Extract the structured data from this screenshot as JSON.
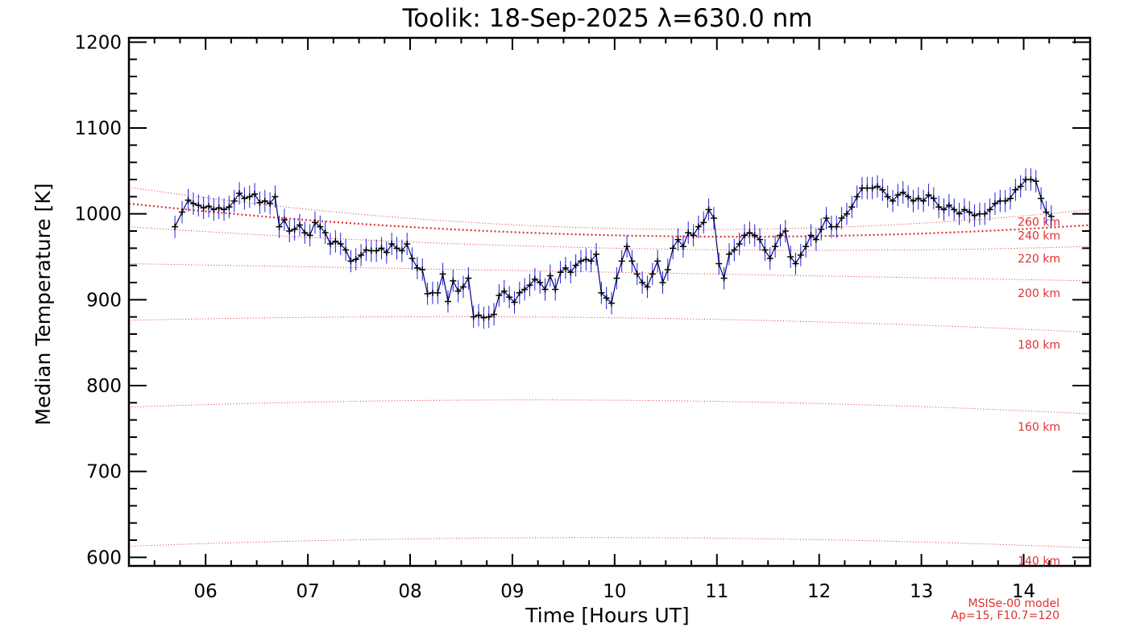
{
  "chart_data": {
    "type": "line",
    "title": "Toolik: 18-Sep-2025 λ=630.0 nm",
    "xlabel": "Time [Hours UT]",
    "ylabel": "Median Temperature [K]",
    "xlim": [
      5.25,
      14.65
    ],
    "ylim": [
      590,
      1205
    ],
    "x_ticks": [
      6,
      7,
      8,
      9,
      10,
      11,
      12,
      13,
      14
    ],
    "x_tick_labels": [
      "06",
      "07",
      "08",
      "09",
      "10",
      "11",
      "12",
      "13",
      "14"
    ],
    "y_ticks": [
      600,
      700,
      800,
      900,
      1000,
      1100,
      1200
    ],
    "y_tick_labels": [
      "600",
      "700",
      "800",
      "900",
      "1000",
      "1100",
      "1200"
    ],
    "series": [
      {
        "color": "#000080",
        "error_color": "#2020e0",
        "error": 13,
        "points": [
          [
            5.7,
            985
          ],
          [
            5.77,
            1002
          ],
          [
            5.83,
            1016
          ],
          [
            5.88,
            1012
          ],
          [
            5.93,
            1010
          ],
          [
            5.98,
            1007
          ],
          [
            6.03,
            1009
          ],
          [
            6.08,
            1005
          ],
          [
            6.13,
            1007
          ],
          [
            6.18,
            1005
          ],
          [
            6.23,
            1008
          ],
          [
            6.28,
            1015
          ],
          [
            6.33,
            1024
          ],
          [
            6.38,
            1018
          ],
          [
            6.43,
            1020
          ],
          [
            6.48,
            1023
          ],
          [
            6.53,
            1013
          ],
          [
            6.58,
            1015
          ],
          [
            6.63,
            1012
          ],
          [
            6.68,
            1020
          ],
          [
            6.72,
            985
          ],
          [
            6.77,
            993
          ],
          [
            6.82,
            980
          ],
          [
            6.87,
            982
          ],
          [
            6.92,
            987
          ],
          [
            6.97,
            978
          ],
          [
            7.02,
            975
          ],
          [
            7.07,
            990
          ],
          [
            7.12,
            985
          ],
          [
            7.17,
            978
          ],
          [
            7.22,
            965
          ],
          [
            7.27,
            968
          ],
          [
            7.32,
            965
          ],
          [
            7.37,
            958
          ],
          [
            7.42,
            945
          ],
          [
            7.47,
            947
          ],
          [
            7.52,
            952
          ],
          [
            7.57,
            958
          ],
          [
            7.62,
            957
          ],
          [
            7.67,
            957
          ],
          [
            7.72,
            960
          ],
          [
            7.77,
            955
          ],
          [
            7.82,
            965
          ],
          [
            7.87,
            960
          ],
          [
            7.92,
            957
          ],
          [
            7.97,
            965
          ],
          [
            8.02,
            948
          ],
          [
            8.07,
            937
          ],
          [
            8.12,
            935
          ],
          [
            8.17,
            907
          ],
          [
            8.22,
            908
          ],
          [
            8.27,
            908
          ],
          [
            8.32,
            930
          ],
          [
            8.37,
            898
          ],
          [
            8.42,
            922
          ],
          [
            8.47,
            910
          ],
          [
            8.52,
            915
          ],
          [
            8.57,
            925
          ],
          [
            8.62,
            880
          ],
          [
            8.67,
            882
          ],
          [
            8.72,
            879
          ],
          [
            8.77,
            880
          ],
          [
            8.82,
            883
          ],
          [
            8.87,
            905
          ],
          [
            8.92,
            910
          ],
          [
            8.97,
            903
          ],
          [
            9.02,
            897
          ],
          [
            9.07,
            908
          ],
          [
            9.12,
            912
          ],
          [
            9.17,
            917
          ],
          [
            9.22,
            924
          ],
          [
            9.27,
            920
          ],
          [
            9.32,
            912
          ],
          [
            9.37,
            928
          ],
          [
            9.42,
            912
          ],
          [
            9.47,
            932
          ],
          [
            9.52,
            937
          ],
          [
            9.57,
            932
          ],
          [
            9.62,
            940
          ],
          [
            9.67,
            945
          ],
          [
            9.72,
            947
          ],
          [
            9.77,
            945
          ],
          [
            9.82,
            953
          ],
          [
            9.87,
            908
          ],
          [
            9.92,
            902
          ],
          [
            9.97,
            896
          ],
          [
            10.02,
            925
          ],
          [
            10.07,
            945
          ],
          [
            10.12,
            962
          ],
          [
            10.17,
            945
          ],
          [
            10.22,
            930
          ],
          [
            10.27,
            920
          ],
          [
            10.32,
            915
          ],
          [
            10.37,
            930
          ],
          [
            10.42,
            945
          ],
          [
            10.47,
            920
          ],
          [
            10.52,
            935
          ],
          [
            10.57,
            960
          ],
          [
            10.62,
            970
          ],
          [
            10.67,
            962
          ],
          [
            10.72,
            978
          ],
          [
            10.77,
            975
          ],
          [
            10.82,
            985
          ],
          [
            10.87,
            990
          ],
          [
            10.92,
            1005
          ],
          [
            10.97,
            995
          ],
          [
            11.02,
            942
          ],
          [
            11.07,
            925
          ],
          [
            11.12,
            953
          ],
          [
            11.17,
            958
          ],
          [
            11.22,
            965
          ],
          [
            11.27,
            975
          ],
          [
            11.32,
            978
          ],
          [
            11.37,
            975
          ],
          [
            11.42,
            970
          ],
          [
            11.47,
            958
          ],
          [
            11.52,
            948
          ],
          [
            11.57,
            962
          ],
          [
            11.62,
            975
          ],
          [
            11.67,
            980
          ],
          [
            11.72,
            950
          ],
          [
            11.77,
            942
          ],
          [
            11.82,
            952
          ],
          [
            11.87,
            962
          ],
          [
            11.92,
            975
          ],
          [
            11.97,
            970
          ],
          [
            12.02,
            982
          ],
          [
            12.07,
            995
          ],
          [
            12.12,
            985
          ],
          [
            12.17,
            985
          ],
          [
            12.22,
            995
          ],
          [
            12.27,
            1000
          ],
          [
            12.32,
            1008
          ],
          [
            12.37,
            1020
          ],
          [
            12.42,
            1030
          ],
          [
            12.47,
            1030
          ],
          [
            12.52,
            1030
          ],
          [
            12.57,
            1032
          ],
          [
            12.62,
            1028
          ],
          [
            12.67,
            1020
          ],
          [
            12.72,
            1015
          ],
          [
            12.77,
            1022
          ],
          [
            12.82,
            1025
          ],
          [
            12.87,
            1020
          ],
          [
            12.92,
            1015
          ],
          [
            12.97,
            1018
          ],
          [
            13.02,
            1015
          ],
          [
            13.07,
            1022
          ],
          [
            13.12,
            1018
          ],
          [
            13.17,
            1008
          ],
          [
            13.22,
            1005
          ],
          [
            13.27,
            1010
          ],
          [
            13.32,
            1005
          ],
          [
            13.37,
            1000
          ],
          [
            13.42,
            1005
          ],
          [
            13.47,
            1002
          ],
          [
            13.52,
            998
          ],
          [
            13.57,
            1000
          ],
          [
            13.62,
            1000
          ],
          [
            13.67,
            1005
          ],
          [
            13.72,
            1012
          ],
          [
            13.77,
            1015
          ],
          [
            13.82,
            1015
          ],
          [
            13.87,
            1018
          ],
          [
            13.92,
            1028
          ],
          [
            13.97,
            1032
          ],
          [
            14.02,
            1040
          ],
          [
            14.07,
            1040
          ],
          [
            14.12,
            1038
          ],
          [
            14.17,
            1018
          ],
          [
            14.22,
            1002
          ],
          [
            14.27,
            997
          ]
        ]
      }
    ],
    "model_lines": [
      {
        "label": "140 km",
        "x": [
          5.25,
          10.0,
          14.65
        ],
        "y": [
          613,
          623,
          611
        ],
        "width": 1.0,
        "label_y": 596
      },
      {
        "label": "160 km",
        "x": [
          5.25,
          10.0,
          14.65
        ],
        "y": [
          775,
          783,
          767
        ],
        "width": 1.0,
        "label_y": 752
      },
      {
        "label": "180 km",
        "x": [
          5.25,
          10.0,
          14.65
        ],
        "y": [
          876,
          879,
          862
        ],
        "width": 1.0,
        "label_y": 848
      },
      {
        "label": "200 km",
        "x": [
          5.25,
          10.0,
          14.65
        ],
        "y": [
          942,
          932,
          922
        ],
        "width": 1.0,
        "label_y": 908
      },
      {
        "label": "220 km",
        "x": [
          5.25,
          10.0,
          14.65
        ],
        "y": [
          985,
          960,
          962
        ],
        "width": 1.0,
        "label_y": 948
      },
      {
        "label": "240 km",
        "x": [
          5.25,
          10.0,
          14.65
        ],
        "y": [
          1012,
          975,
          987
        ],
        "width": 2.2,
        "label_y": 975
      },
      {
        "label": "260 km",
        "x": [
          5.25,
          10.0,
          14.65
        ],
        "y": [
          1031,
          983,
          1005
        ],
        "width": 1.0,
        "label_y": 991
      }
    ],
    "model_color": "#e03030",
    "note_lines": [
      "MSISe-00 model",
      "Ap=15, F10.7=120"
    ],
    "grid": false
  }
}
